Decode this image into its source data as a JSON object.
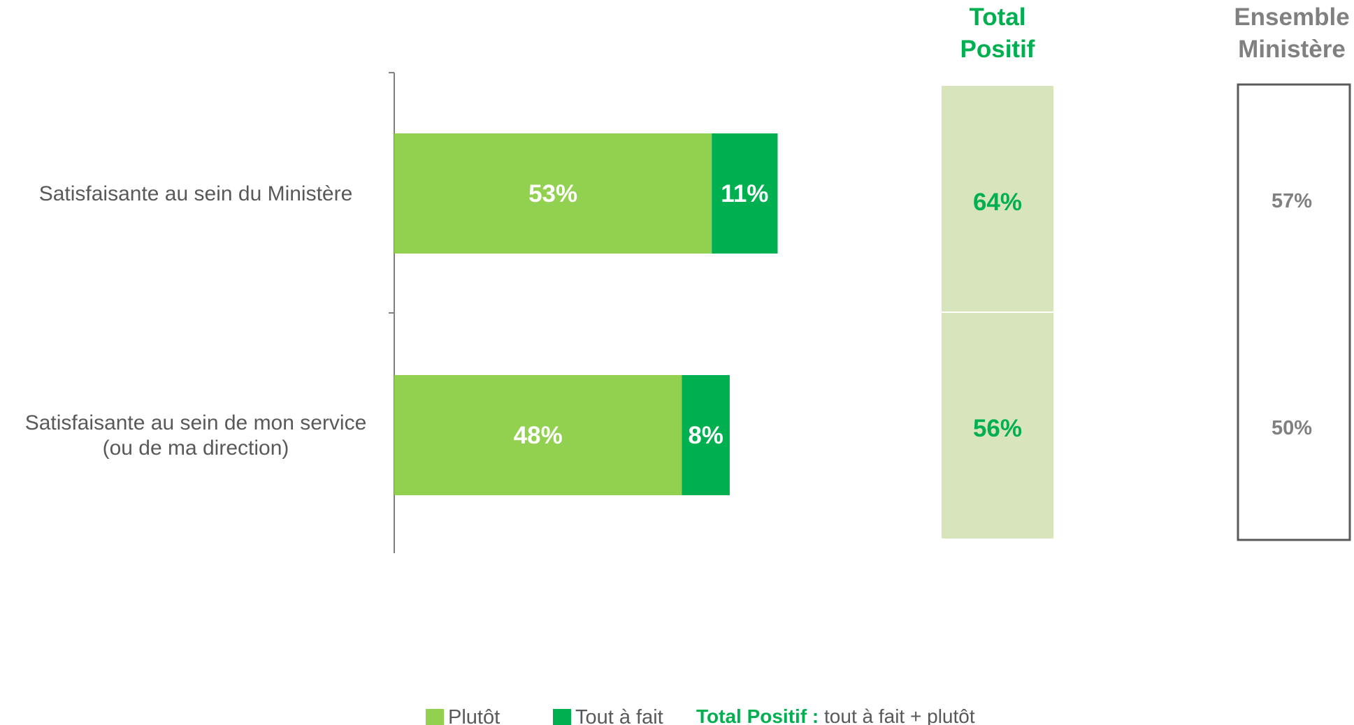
{
  "chart_data": {
    "type": "bar",
    "orientation": "horizontal",
    "stacked": true,
    "categories": [
      [
        "Satisfaisante au sein du Ministère"
      ],
      [
        "Satisfaisante au sein de mon service",
        "(ou de ma direction)"
      ]
    ],
    "series": [
      {
        "name": "Plutôt",
        "values": [
          53,
          48
        ],
        "labels": [
          "53%",
          "48%"
        ],
        "color": "#92d050"
      },
      {
        "name": "Tout à fait",
        "values": [
          11,
          8
        ],
        "labels": [
          "11%",
          "8%"
        ],
        "color": "#00b050"
      }
    ],
    "total_positif": {
      "header": [
        "Total",
        "Positif"
      ],
      "values": [
        64,
        56
      ],
      "labels": [
        "64%",
        "56%"
      ],
      "color": "#00b050",
      "fill": "#d8e4bc"
    },
    "ensemble_ministere": {
      "header": [
        "Ensemble",
        "Ministère"
      ],
      "values": [
        57,
        50
      ],
      "labels": [
        "57%",
        "50%"
      ],
      "color": "#808080"
    },
    "legend": {
      "items": [
        "Plutôt",
        "Tout à fait"
      ],
      "note_bold": "Total Positif :",
      "note_text": " tout à fait + plutôt"
    },
    "xlim": [
      0,
      100
    ],
    "grid": false,
    "legend_placement": "bottom"
  }
}
